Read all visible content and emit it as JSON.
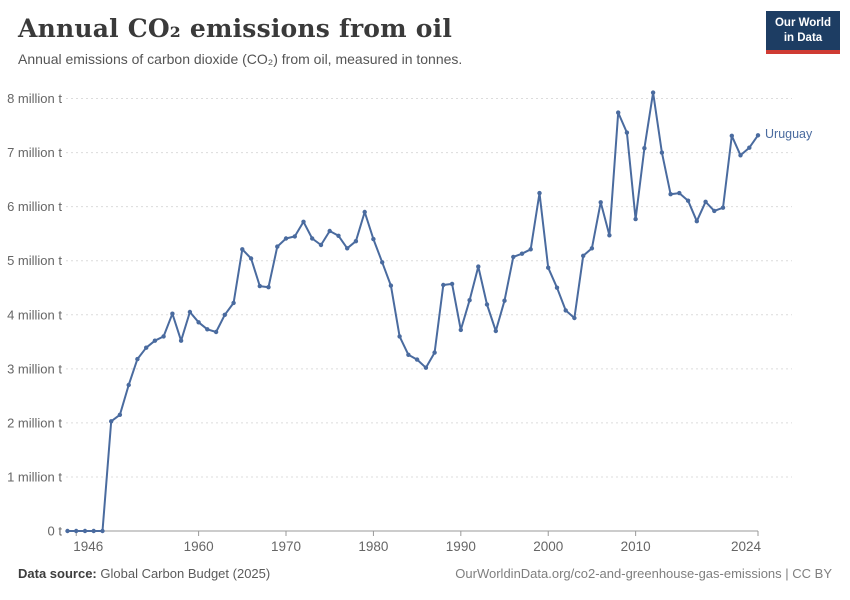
{
  "header": {
    "title": "Annual CO₂ emissions from oil",
    "subtitle": "Annual emissions of carbon dioxide (CO₂) from oil, measured in tonnes."
  },
  "logo": {
    "line1": "Our World",
    "line2": "in Data"
  },
  "footer": {
    "source_label": "Data source:",
    "source_value": "Global Carbon Budget (2025)",
    "rights": "OurWorldinData.org/co2-and-greenhouse-gas-emissions | CC BY"
  },
  "colors": {
    "line": "#4a6b9f",
    "grid": "#dcdcdc",
    "axis": "#999999",
    "tick_label": "#666666",
    "logo_bg": "#1d3d63",
    "logo_bar": "#cf3b33"
  },
  "chart_data": {
    "type": "line",
    "title": "Annual CO₂ emissions from oil",
    "xlabel": "",
    "ylabel": "",
    "unit": "million tonnes",
    "grid": "horizontal-dashed",
    "x_range": [
      1945,
      2024
    ],
    "ylim": [
      0,
      8
    ],
    "x_ticks": [
      1946,
      1960,
      1970,
      1980,
      1990,
      2000,
      2010,
      2024
    ],
    "y_ticks": [
      {
        "value": 0,
        "label": "0 t"
      },
      {
        "value": 1,
        "label": "1 million t"
      },
      {
        "value": 2,
        "label": "2 million t"
      },
      {
        "value": 3,
        "label": "3 million t"
      },
      {
        "value": 4,
        "label": "4 million t"
      },
      {
        "value": 5,
        "label": "5 million t"
      },
      {
        "value": 6,
        "label": "6 million t"
      },
      {
        "value": 7,
        "label": "7 million t"
      },
      {
        "value": 8,
        "label": "8 million t"
      }
    ],
    "series": [
      {
        "name": "Uruguay",
        "color": "#4a6b9f",
        "x": [
          1945,
          1946,
          1947,
          1948,
          1949,
          1950,
          1951,
          1952,
          1953,
          1954,
          1955,
          1956,
          1957,
          1958,
          1959,
          1960,
          1961,
          1962,
          1963,
          1964,
          1965,
          1966,
          1967,
          1968,
          1969,
          1970,
          1971,
          1972,
          1973,
          1974,
          1975,
          1976,
          1977,
          1978,
          1979,
          1980,
          1981,
          1982,
          1983,
          1984,
          1985,
          1986,
          1987,
          1988,
          1989,
          1990,
          1991,
          1992,
          1993,
          1994,
          1995,
          1996,
          1997,
          1998,
          1999,
          2000,
          2001,
          2002,
          2003,
          2004,
          2005,
          2006,
          2007,
          2008,
          2009,
          2010,
          2011,
          2012,
          2013,
          2014,
          2015,
          2016,
          2017,
          2018,
          2019,
          2020,
          2021,
          2022,
          2023,
          2024
        ],
        "values": [
          0,
          0,
          0,
          0,
          0,
          2.03,
          2.15,
          2.7,
          3.18,
          3.39,
          3.52,
          3.6,
          4.02,
          3.52,
          4.05,
          3.86,
          3.73,
          3.68,
          4.0,
          4.22,
          5.21,
          5.04,
          4.53,
          4.51,
          5.26,
          5.41,
          5.45,
          5.72,
          5.41,
          5.29,
          5.55,
          5.46,
          5.23,
          5.36,
          5.9,
          5.4,
          4.97,
          4.54,
          3.6,
          3.26,
          3.17,
          3.02,
          3.3,
          4.55,
          4.57,
          3.72,
          4.27,
          4.89,
          4.19,
          3.7,
          4.26,
          5.07,
          5.13,
          5.21,
          6.25,
          4.87,
          4.5,
          4.08,
          3.94,
          5.09,
          5.23,
          6.08,
          5.47,
          7.74,
          7.37,
          5.77,
          7.08,
          8.11,
          7.0,
          6.23,
          6.25,
          6.11,
          5.73,
          6.09,
          5.92,
          5.98,
          7.31,
          6.95,
          7.09,
          7.32
        ]
      }
    ]
  }
}
